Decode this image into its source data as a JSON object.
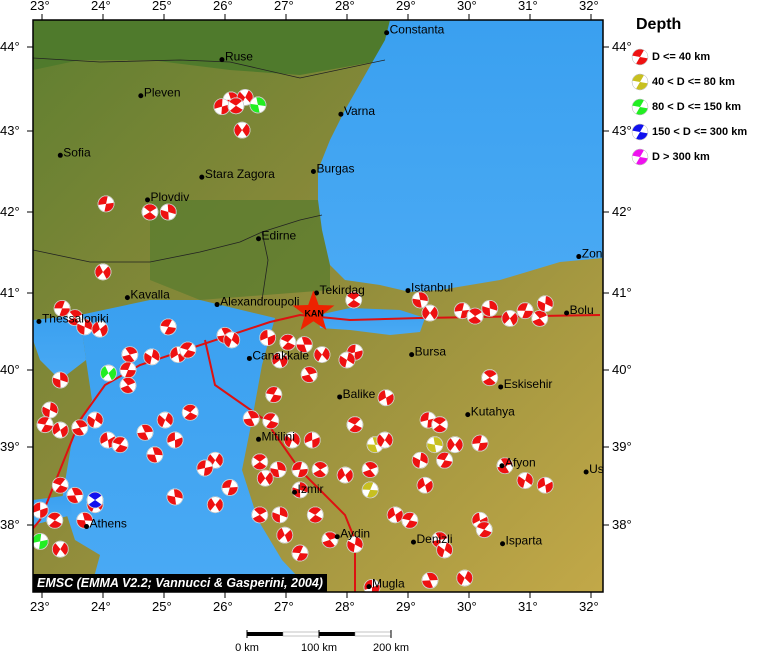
{
  "credit": "EMSC (EMMA V2.2; Vannucci & Gasperini, 2004)",
  "axes": {
    "lon_ticks": [
      "23°",
      "24°",
      "25°",
      "26°",
      "27°",
      "28°",
      "29°",
      "30°",
      "31°",
      "32°"
    ],
    "lat_ticks": [
      "44°",
      "43°",
      "42°",
      "41°",
      "40°",
      "39°",
      "38°"
    ]
  },
  "legend": {
    "title": "Depth",
    "items": [
      {
        "label": "D <= 40 km",
        "color": "#ee1111"
      },
      {
        "label": "40 < D <= 80 km",
        "color": "#c8c020"
      },
      {
        "label": "80 < D <= 150 km",
        "color": "#22ee22"
      },
      {
        "label": "150 < D <= 300 km",
        "color": "#1111ee"
      },
      {
        "label": "D > 300 km",
        "color": "#ee11ee"
      }
    ]
  },
  "scale_bar": {
    "labels": [
      "0 km",
      "100 km",
      "200 km"
    ]
  },
  "station": {
    "label": "KAN",
    "lon": 27.45,
    "lat": 40.75,
    "color": "#ee2200"
  },
  "cities": [
    {
      "name": "Constanta",
      "lon": 28.65,
      "lat": 44.17
    },
    {
      "name": "Ruse",
      "lon": 25.95,
      "lat": 43.85
    },
    {
      "name": "Pleven",
      "lon": 24.62,
      "lat": 43.42
    },
    {
      "name": "Varna",
      "lon": 27.9,
      "lat": 43.2
    },
    {
      "name": "Sofia",
      "lon": 23.3,
      "lat": 42.7
    },
    {
      "name": "Stara Zagora",
      "lon": 25.62,
      "lat": 42.43
    },
    {
      "name": "Burgas",
      "lon": 27.45,
      "lat": 42.5
    },
    {
      "name": "Plovdiv",
      "lon": 24.73,
      "lat": 42.15
    },
    {
      "name": "Edirne",
      "lon": 26.55,
      "lat": 41.67
    },
    {
      "name": "Zon",
      "lon": 31.8,
      "lat": 41.45
    },
    {
      "name": "Tekirdag",
      "lon": 27.5,
      "lat": 41.0
    },
    {
      "name": "Istanbul",
      "lon": 29.0,
      "lat": 41.03
    },
    {
      "name": "Bolu",
      "lon": 31.6,
      "lat": 40.74
    },
    {
      "name": "Kavalla",
      "lon": 24.4,
      "lat": 40.94
    },
    {
      "name": "Alexandroupoli",
      "lon": 25.87,
      "lat": 40.85
    },
    {
      "name": "Thessaloniki",
      "lon": 22.95,
      "lat": 40.63
    },
    {
      "name": "Canakkale",
      "lon": 26.4,
      "lat": 40.15
    },
    {
      "name": "Bursa",
      "lon": 29.06,
      "lat": 40.2
    },
    {
      "name": "Eskisehir",
      "lon": 30.52,
      "lat": 39.78
    },
    {
      "name": "Balike",
      "lon": 27.88,
      "lat": 39.65
    },
    {
      "name": "Kutahya",
      "lon": 29.98,
      "lat": 39.42
    },
    {
      "name": "Mitilini",
      "lon": 26.55,
      "lat": 39.1
    },
    {
      "name": "Izmir",
      "lon": 27.14,
      "lat": 38.42
    },
    {
      "name": "Afyon",
      "lon": 30.54,
      "lat": 38.76
    },
    {
      "name": "Us",
      "lon": 31.92,
      "lat": 38.68
    },
    {
      "name": "Athens",
      "lon": 23.73,
      "lat": 37.98
    },
    {
      "name": "Aydin",
      "lon": 27.84,
      "lat": 37.85
    },
    {
      "name": "Denizli",
      "lon": 29.09,
      "lat": 37.78
    },
    {
      "name": "Isparta",
      "lon": 30.55,
      "lat": 37.76
    },
    {
      "name": "Mugla",
      "lon": 28.36,
      "lat": 37.21
    }
  ],
  "events": [
    [
      26.1,
      43.37,
      0
    ],
    [
      26.33,
      43.4,
      0
    ],
    [
      25.95,
      43.29,
      0
    ],
    [
      26.18,
      43.3,
      0
    ],
    [
      26.54,
      43.31,
      2
    ],
    [
      26.28,
      43.01,
      0
    ],
    [
      24.05,
      42.1,
      0
    ],
    [
      24.77,
      42.0,
      0
    ],
    [
      25.07,
      42.0,
      0
    ],
    [
      24.0,
      41.26,
      0
    ],
    [
      23.33,
      40.8,
      0
    ],
    [
      23.54,
      40.68,
      0
    ],
    [
      23.7,
      40.56,
      0
    ],
    [
      23.95,
      40.53,
      0
    ],
    [
      25.07,
      40.56,
      0
    ],
    [
      24.44,
      40.2,
      0
    ],
    [
      24.8,
      40.17,
      0
    ],
    [
      25.23,
      40.2,
      0
    ],
    [
      25.39,
      40.26,
      0
    ],
    [
      26.0,
      40.45,
      0
    ],
    [
      26.11,
      40.39,
      0
    ],
    [
      26.7,
      40.42,
      0
    ],
    [
      27.03,
      40.36,
      0
    ],
    [
      27.3,
      40.33,
      0
    ],
    [
      27.59,
      40.2,
      0
    ],
    [
      28.13,
      40.23,
      0
    ],
    [
      28.11,
      40.91,
      0
    ],
    [
      29.2,
      40.91,
      0
    ],
    [
      29.36,
      40.74,
      0
    ],
    [
      29.89,
      40.77,
      0
    ],
    [
      30.1,
      40.7,
      0
    ],
    [
      30.34,
      40.8,
      0
    ],
    [
      30.67,
      40.67,
      0
    ],
    [
      30.92,
      40.77,
      0
    ],
    [
      31.16,
      40.67,
      0
    ],
    [
      31.25,
      40.86,
      0
    ],
    [
      26.9,
      40.13,
      0
    ],
    [
      26.8,
      39.68,
      0
    ],
    [
      27.38,
      39.94,
      0
    ],
    [
      28.0,
      40.13,
      0
    ],
    [
      28.64,
      39.64,
      0
    ],
    [
      26.75,
      39.34,
      0
    ],
    [
      26.43,
      39.37,
      0
    ],
    [
      27.1,
      39.09,
      0
    ],
    [
      27.43,
      39.09,
      0
    ],
    [
      28.13,
      39.29,
      0
    ],
    [
      28.46,
      39.03,
      1
    ],
    [
      28.62,
      39.09,
      0
    ],
    [
      29.33,
      39.35,
      0
    ],
    [
      29.52,
      39.29,
      0
    ],
    [
      29.44,
      39.03,
      1
    ],
    [
      29.77,
      39.03,
      0
    ],
    [
      30.18,
      39.05,
      0
    ],
    [
      30.34,
      39.9,
      0
    ],
    [
      23.3,
      39.87,
      0
    ],
    [
      24.09,
      39.96,
      2
    ],
    [
      24.41,
      40.0,
      0
    ],
    [
      24.41,
      39.8,
      0
    ],
    [
      23.13,
      39.48,
      0
    ],
    [
      23.3,
      39.22,
      0
    ],
    [
      23.05,
      39.29,
      0
    ],
    [
      23.62,
      39.25,
      0
    ],
    [
      23.87,
      39.35,
      0
    ],
    [
      24.08,
      39.09,
      0
    ],
    [
      24.28,
      39.03,
      0
    ],
    [
      24.69,
      39.19,
      0
    ],
    [
      25.02,
      39.35,
      0
    ],
    [
      25.18,
      39.09,
      0
    ],
    [
      25.43,
      39.45,
      0
    ],
    [
      24.85,
      38.9,
      0
    ],
    [
      25.84,
      38.83,
      0
    ],
    [
      25.67,
      38.73,
      0
    ],
    [
      26.57,
      38.81,
      0
    ],
    [
      26.87,
      38.71,
      0
    ],
    [
      26.66,
      38.6,
      0
    ],
    [
      27.23,
      38.71,
      0
    ],
    [
      27.56,
      38.71,
      0
    ],
    [
      27.23,
      38.45,
      0
    ],
    [
      27.97,
      38.64,
      0
    ],
    [
      28.38,
      38.45,
      1
    ],
    [
      28.38,
      38.71,
      0
    ],
    [
      29.2,
      38.83,
      0
    ],
    [
      29.28,
      38.51,
      0
    ],
    [
      29.6,
      38.83,
      0
    ],
    [
      30.59,
      38.76,
      0
    ],
    [
      30.92,
      38.57,
      0
    ],
    [
      31.25,
      38.51,
      0
    ],
    [
      23.3,
      38.51,
      0
    ],
    [
      23.54,
      38.38,
      0
    ],
    [
      23.87,
      38.26,
      0
    ],
    [
      22.97,
      38.19,
      0
    ],
    [
      23.21,
      38.06,
      0
    ],
    [
      23.7,
      38.06,
      0
    ],
    [
      23.3,
      37.69,
      0
    ],
    [
      22.97,
      37.79,
      2
    ],
    [
      23.87,
      38.32,
      3
    ],
    [
      25.18,
      38.36,
      0
    ],
    [
      25.84,
      38.26,
      0
    ],
    [
      26.08,
      38.48,
      0
    ],
    [
      26.57,
      38.13,
      0
    ],
    [
      26.9,
      38.13,
      0
    ],
    [
      26.98,
      37.87,
      0
    ],
    [
      27.23,
      37.64,
      0
    ],
    [
      27.72,
      37.81,
      0
    ],
    [
      28.13,
      37.75,
      0
    ],
    [
      28.79,
      38.13,
      0
    ],
    [
      29.03,
      38.06,
      0
    ],
    [
      29.52,
      37.81,
      0
    ],
    [
      29.6,
      37.68,
      0
    ],
    [
      30.18,
      38.06,
      0
    ],
    [
      30.25,
      37.94,
      0
    ],
    [
      29.36,
      37.29,
      0
    ],
    [
      29.93,
      37.32,
      0
    ],
    [
      28.41,
      37.2,
      0
    ],
    [
      27.48,
      38.13,
      0
    ]
  ]
}
